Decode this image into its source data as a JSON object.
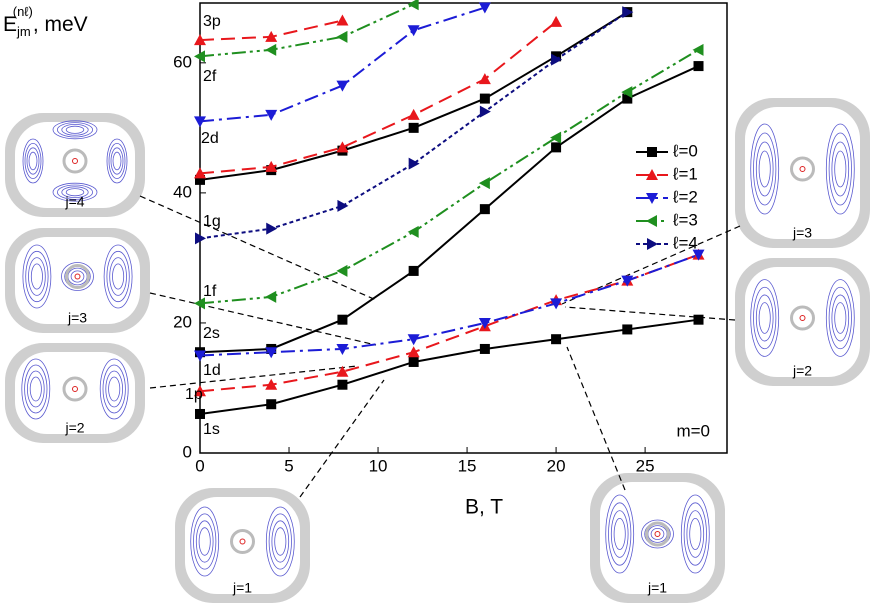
{
  "chart_data": {
    "type": "line",
    "y_label": {
      "main": "E",
      "sub": "jm",
      "sup": "(nℓ)",
      "unit": ", meV"
    },
    "x_label": "B, T",
    "x": [
      0,
      4,
      8,
      12,
      16,
      20,
      24,
      28
    ],
    "xlim": [
      0,
      29.6
    ],
    "xticks": [
      0,
      5,
      10,
      15,
      20,
      25
    ],
    "ylim": [
      0,
      69.2
    ],
    "yticks": [
      0,
      20,
      40,
      60
    ],
    "legend": "right",
    "series": [
      {
        "name": "ℓ=0",
        "color": "#000000",
        "dash": "none",
        "marker": "square",
        "branches": [
          [
            6,
            7.5,
            10.5,
            14,
            16,
            17.5,
            19,
            20.5
          ],
          [
            15.5,
            16,
            20.5,
            28,
            37.5,
            47,
            54.5,
            59.5
          ],
          [
            42,
            43.5,
            46.5,
            50,
            54.5,
            61,
            67.8,
            null
          ]
        ]
      },
      {
        "name": "ℓ=1",
        "color": "#e8171c",
        "dash": "14,7",
        "marker": "triangle-up",
        "branches": [
          [
            9.5,
            10.5,
            12.5,
            15.5,
            19.5,
            23.5,
            26.5,
            30.5
          ],
          [
            43,
            44,
            47,
            52,
            57.5,
            66.3,
            null,
            null
          ],
          [
            63.5,
            64,
            66.5,
            null,
            null,
            null,
            null,
            null
          ]
        ]
      },
      {
        "name": "ℓ=2",
        "color": "#1c1cd6",
        "dash": "14,5,3,5",
        "marker": "triangle-down",
        "branches": [
          [
            15,
            15.5,
            16,
            17.5,
            20,
            23,
            26.5,
            30.5
          ],
          [
            51,
            52,
            56.5,
            65,
            68.5,
            null,
            null,
            null
          ]
        ]
      },
      {
        "name": "ℓ=3",
        "color": "#1f8f1f",
        "dash": "14,4,3,4,3,4",
        "marker": "triangle-left",
        "branches": [
          [
            23,
            24,
            28,
            34,
            41.5,
            48.5,
            55.5,
            62
          ],
          [
            61,
            62,
            64,
            69,
            null,
            null,
            null,
            null
          ]
        ]
      },
      {
        "name": "ℓ=4",
        "color": "#0d0d80",
        "dash": "4,3",
        "marker": "triangle-right",
        "branches": [
          [
            33,
            34.5,
            38,
            44.5,
            52.5,
            60.5,
            67.8,
            null
          ]
        ]
      }
    ],
    "curve_labels": [
      {
        "text": "3p",
        "color": "#e8171c"
      },
      {
        "text": "2f",
        "color": "#1f8f1f"
      },
      {
        "text": "2d",
        "color": "#1c1cd6"
      },
      {
        "text": "1g",
        "color": "#0d0d80"
      },
      {
        "text": "1f",
        "color": "#1f8f1f"
      },
      {
        "text": "2s",
        "color": "#000000"
      },
      {
        "text": "1d",
        "color": "#1c1cd6"
      },
      {
        "text": "1p",
        "color": "#e8171c"
      },
      {
        "text": "1s",
        "color": "#000000"
      }
    ],
    "annotation": "m=0",
    "insets": [
      "j=4",
      "j=3",
      "j=2",
      "j=1",
      "j=1",
      "j=3",
      "j=2"
    ]
  }
}
